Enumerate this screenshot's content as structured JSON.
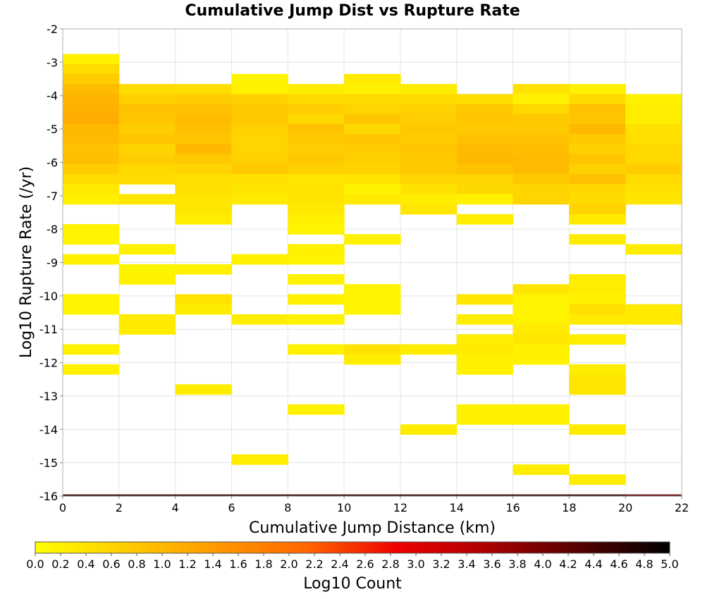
{
  "chart_data": {
    "type": "heatmap",
    "title": "Cumulative Jump Dist vs Rupture Rate",
    "xlabel": "Cumulative Jump Distance (km)",
    "ylabel": "Log10 Rupture Rate (/yr)",
    "xlim": [
      0,
      22
    ],
    "ylim": [
      -16,
      -2
    ],
    "x_ticks": [
      "0",
      "2",
      "4",
      "6",
      "8",
      "10",
      "12",
      "14",
      "16",
      "18",
      "20",
      "22"
    ],
    "y_ticks": [
      "-2",
      "-3",
      "-4",
      "-5",
      "-6",
      "-7",
      "-8",
      "-9",
      "-10",
      "-11",
      "-12",
      "-13",
      "-14",
      "-15",
      "-16"
    ],
    "x_bin_width": 2,
    "y_bin_height": 0.3,
    "grid": true,
    "colorbar": {
      "label": "Log10 Count",
      "range": [
        0,
        5
      ],
      "ticks": [
        "0.0",
        "0.2",
        "0.4",
        "0.6",
        "0.8",
        "1.0",
        "1.2",
        "1.4",
        "1.6",
        "1.8",
        "2.0",
        "2.2",
        "2.4",
        "2.6",
        "2.8",
        "3.0",
        "3.2",
        "3.4",
        "3.6",
        "3.8",
        "4.0",
        "4.2",
        "4.4",
        "4.6",
        "4.8",
        "5.0"
      ],
      "colors": [
        "#ffff00",
        "#ffcc00",
        "#ff9900",
        "#ff6600",
        "#ee0000",
        "#aa0000",
        "#550000",
        "#000000"
      ],
      "position": "bottom"
    },
    "bin_x_centers": [
      1,
      3,
      5,
      7,
      9,
      11,
      13,
      15,
      17,
      19,
      21
    ],
    "columns": [
      {
        "x": 1,
        "cells": [
          {
            "y": -2.9,
            "v": 0.2
          },
          {
            "y": -3.2,
            "v": 0.5
          },
          {
            "y": -3.5,
            "v": 0.7
          },
          {
            "y": -3.8,
            "v": 0.95
          },
          {
            "y": -4.1,
            "v": 1.05
          },
          {
            "y": -4.4,
            "v": 1.1
          },
          {
            "y": -4.7,
            "v": 1.15
          },
          {
            "y": -5.0,
            "v": 1.0
          },
          {
            "y": -5.3,
            "v": 0.95
          },
          {
            "y": -5.6,
            "v": 0.85
          },
          {
            "y": -5.9,
            "v": 0.9
          },
          {
            "y": -6.2,
            "v": 0.7
          },
          {
            "y": -6.5,
            "v": 0.5
          },
          {
            "y": -6.8,
            "v": 0.3
          },
          {
            "y": -7.1,
            "v": 0.2
          },
          {
            "y": -8.0,
            "v": 0.15
          },
          {
            "y": -8.3,
            "v": 0.15
          },
          {
            "y": -8.9,
            "v": 0.2
          },
          {
            "y": -10.1,
            "v": 0.15
          },
          {
            "y": -10.4,
            "v": 0.15
          },
          {
            "y": -11.6,
            "v": 0.2
          },
          {
            "y": -12.2,
            "v": 0.2
          },
          {
            "y": -16.1,
            "v": 4.6
          }
        ]
      },
      {
        "x": 3,
        "cells": [
          {
            "y": -3.8,
            "v": 0.5
          },
          {
            "y": -4.1,
            "v": 0.65
          },
          {
            "y": -4.4,
            "v": 0.85
          },
          {
            "y": -4.7,
            "v": 0.8
          },
          {
            "y": -5.0,
            "v": 0.7
          },
          {
            "y": -5.3,
            "v": 0.8
          },
          {
            "y": -5.6,
            "v": 0.6
          },
          {
            "y": -5.9,
            "v": 0.7
          },
          {
            "y": -6.2,
            "v": 0.55
          },
          {
            "y": -6.5,
            "v": 0.5
          },
          {
            "y": -7.1,
            "v": 0.35
          },
          {
            "y": -8.6,
            "v": 0.2
          },
          {
            "y": -9.2,
            "v": 0.15
          },
          {
            "y": -9.5,
            "v": 0.2
          },
          {
            "y": -10.7,
            "v": 0.3
          },
          {
            "y": -11.0,
            "v": 0.25
          },
          {
            "y": -16.1,
            "v": 4.6
          }
        ]
      },
      {
        "x": 5,
        "cells": [
          {
            "y": -3.8,
            "v": 0.45
          },
          {
            "y": -4.1,
            "v": 0.7
          },
          {
            "y": -4.4,
            "v": 0.85
          },
          {
            "y": -4.7,
            "v": 0.95
          },
          {
            "y": -5.0,
            "v": 0.9
          },
          {
            "y": -5.3,
            "v": 0.8
          },
          {
            "y": -5.6,
            "v": 1.0
          },
          {
            "y": -5.9,
            "v": 0.75
          },
          {
            "y": -6.2,
            "v": 0.6
          },
          {
            "y": -6.5,
            "v": 0.45
          },
          {
            "y": -6.8,
            "v": 0.45
          },
          {
            "y": -7.1,
            "v": 0.35
          },
          {
            "y": -7.4,
            "v": 0.35
          },
          {
            "y": -7.7,
            "v": 0.25
          },
          {
            "y": -9.2,
            "v": 0.2
          },
          {
            "y": -10.1,
            "v": 0.4
          },
          {
            "y": -10.4,
            "v": 0.25
          },
          {
            "y": -12.8,
            "v": 0.25
          },
          {
            "y": -16.1,
            "v": 4.6
          }
        ]
      },
      {
        "x": 7,
        "cells": [
          {
            "y": -3.5,
            "v": 0.15
          },
          {
            "y": -3.8,
            "v": 0.2
          },
          {
            "y": -4.1,
            "v": 0.65
          },
          {
            "y": -4.4,
            "v": 0.75
          },
          {
            "y": -4.7,
            "v": 0.75
          },
          {
            "y": -5.0,
            "v": 0.65
          },
          {
            "y": -5.3,
            "v": 0.6
          },
          {
            "y": -5.6,
            "v": 0.6
          },
          {
            "y": -5.9,
            "v": 0.65
          },
          {
            "y": -6.2,
            "v": 0.75
          },
          {
            "y": -6.5,
            "v": 0.45
          },
          {
            "y": -6.8,
            "v": 0.35
          },
          {
            "y": -7.1,
            "v": 0.3
          },
          {
            "y": -8.9,
            "v": 0.2
          },
          {
            "y": -10.7,
            "v": 0.25
          },
          {
            "y": -14.9,
            "v": 0.25
          },
          {
            "y": -16.1,
            "v": 4.6
          }
        ]
      },
      {
        "x": 9,
        "cells": [
          {
            "y": -3.8,
            "v": 0.25
          },
          {
            "y": -4.1,
            "v": 0.5
          },
          {
            "y": -4.4,
            "v": 0.7
          },
          {
            "y": -4.7,
            "v": 0.55
          },
          {
            "y": -5.0,
            "v": 0.85
          },
          {
            "y": -5.3,
            "v": 0.75
          },
          {
            "y": -5.6,
            "v": 0.7
          },
          {
            "y": -5.9,
            "v": 0.75
          },
          {
            "y": -6.2,
            "v": 0.65
          },
          {
            "y": -6.5,
            "v": 0.35
          },
          {
            "y": -6.8,
            "v": 0.4
          },
          {
            "y": -7.1,
            "v": 0.35
          },
          {
            "y": -7.4,
            "v": 0.3
          },
          {
            "y": -7.7,
            "v": 0.2
          },
          {
            "y": -8.0,
            "v": 0.15
          },
          {
            "y": -8.6,
            "v": 0.2
          },
          {
            "y": -8.9,
            "v": 0.15
          },
          {
            "y": -9.5,
            "v": 0.2
          },
          {
            "y": -10.1,
            "v": 0.2
          },
          {
            "y": -10.7,
            "v": 0.2
          },
          {
            "y": -11.6,
            "v": 0.2
          },
          {
            "y": -13.4,
            "v": 0.2
          },
          {
            "y": -16.1,
            "v": 4.6
          }
        ]
      },
      {
        "x": 11,
        "cells": [
          {
            "y": -3.5,
            "v": 0.3
          },
          {
            "y": -3.8,
            "v": 0.2
          },
          {
            "y": -4.1,
            "v": 0.5
          },
          {
            "y": -4.4,
            "v": 0.6
          },
          {
            "y": -4.7,
            "v": 0.8
          },
          {
            "y": -5.0,
            "v": 0.55
          },
          {
            "y": -5.3,
            "v": 0.8
          },
          {
            "y": -5.6,
            "v": 0.7
          },
          {
            "y": -5.9,
            "v": 0.65
          },
          {
            "y": -6.2,
            "v": 0.6
          },
          {
            "y": -6.5,
            "v": 0.4
          },
          {
            "y": -6.8,
            "v": 0.15
          },
          {
            "y": -7.1,
            "v": 0.3
          },
          {
            "y": -8.3,
            "v": 0.2
          },
          {
            "y": -9.8,
            "v": 0.15
          },
          {
            "y": -10.1,
            "v": 0.15
          },
          {
            "y": -10.4,
            "v": 0.15
          },
          {
            "y": -11.6,
            "v": 0.4
          },
          {
            "y": -11.9,
            "v": 0.25
          },
          {
            "y": -16.1,
            "v": 4.6
          }
        ]
      },
      {
        "x": 13,
        "cells": [
          {
            "y": -3.8,
            "v": 0.25
          },
          {
            "y": -4.1,
            "v": 0.5
          },
          {
            "y": -4.4,
            "v": 0.65
          },
          {
            "y": -4.7,
            "v": 0.7
          },
          {
            "y": -5.0,
            "v": 0.75
          },
          {
            "y": -5.3,
            "v": 0.7
          },
          {
            "y": -5.6,
            "v": 0.8
          },
          {
            "y": -5.9,
            "v": 0.75
          },
          {
            "y": -6.2,
            "v": 0.75
          },
          {
            "y": -6.5,
            "v": 0.6
          },
          {
            "y": -6.8,
            "v": 0.4
          },
          {
            "y": -7.1,
            "v": 0.25
          },
          {
            "y": -7.4,
            "v": 0.35
          },
          {
            "y": -11.6,
            "v": 0.25
          },
          {
            "y": -14.0,
            "v": 0.25
          },
          {
            "y": -16.1,
            "v": 4.6
          }
        ]
      },
      {
        "x": 15,
        "cells": [
          {
            "y": -4.1,
            "v": 0.45
          },
          {
            "y": -4.4,
            "v": 0.75
          },
          {
            "y": -4.7,
            "v": 0.8
          },
          {
            "y": -5.0,
            "v": 0.75
          },
          {
            "y": -5.3,
            "v": 0.85
          },
          {
            "y": -5.6,
            "v": 0.95
          },
          {
            "y": -5.9,
            "v": 1.0
          },
          {
            "y": -6.2,
            "v": 0.85
          },
          {
            "y": -6.5,
            "v": 0.6
          },
          {
            "y": -6.8,
            "v": 0.55
          },
          {
            "y": -7.1,
            "v": 0.2
          },
          {
            "y": -7.7,
            "v": 0.25
          },
          {
            "y": -10.1,
            "v": 0.35
          },
          {
            "y": -10.7,
            "v": 0.25
          },
          {
            "y": -11.3,
            "v": 0.25
          },
          {
            "y": -11.6,
            "v": 0.3
          },
          {
            "y": -11.9,
            "v": 0.2
          },
          {
            "y": -12.2,
            "v": 0.2
          },
          {
            "y": -13.4,
            "v": 0.2
          },
          {
            "y": -13.7,
            "v": 0.2
          },
          {
            "y": -16.1,
            "v": 4.6
          }
        ]
      },
      {
        "x": 17,
        "cells": [
          {
            "y": -3.8,
            "v": 0.4
          },
          {
            "y": -4.1,
            "v": 0.2
          },
          {
            "y": -4.4,
            "v": 0.55
          },
          {
            "y": -4.7,
            "v": 0.75
          },
          {
            "y": -5.0,
            "v": 0.75
          },
          {
            "y": -5.3,
            "v": 0.85
          },
          {
            "y": -5.6,
            "v": 0.9
          },
          {
            "y": -5.9,
            "v": 0.95
          },
          {
            "y": -6.2,
            "v": 0.95
          },
          {
            "y": -6.5,
            "v": 0.75
          },
          {
            "y": -6.8,
            "v": 0.6
          },
          {
            "y": -7.1,
            "v": 0.6
          },
          {
            "y": -9.8,
            "v": 0.35
          },
          {
            "y": -10.1,
            "v": 0.15
          },
          {
            "y": -10.4,
            "v": 0.15
          },
          {
            "y": -10.7,
            "v": 0.15
          },
          {
            "y": -11.0,
            "v": 0.3
          },
          {
            "y": -11.3,
            "v": 0.35
          },
          {
            "y": -11.6,
            "v": 0.2
          },
          {
            "y": -11.9,
            "v": 0.2
          },
          {
            "y": -13.4,
            "v": 0.2
          },
          {
            "y": -13.7,
            "v": 0.2
          },
          {
            "y": -15.2,
            "v": 0.25
          },
          {
            "y": -16.1,
            "v": 4.6
          }
        ]
      },
      {
        "x": 19,
        "cells": [
          {
            "y": -3.8,
            "v": 0.2
          },
          {
            "y": -4.1,
            "v": 0.5
          },
          {
            "y": -4.4,
            "v": 0.85
          },
          {
            "y": -4.7,
            "v": 0.8
          },
          {
            "y": -5.0,
            "v": 1.0
          },
          {
            "y": -5.3,
            "v": 0.75
          },
          {
            "y": -5.6,
            "v": 0.65
          },
          {
            "y": -5.9,
            "v": 0.8
          },
          {
            "y": -6.2,
            "v": 0.65
          },
          {
            "y": -6.5,
            "v": 0.85
          },
          {
            "y": -6.8,
            "v": 0.55
          },
          {
            "y": -7.1,
            "v": 0.5
          },
          {
            "y": -7.4,
            "v": 0.6
          },
          {
            "y": -7.7,
            "v": 0.3
          },
          {
            "y": -8.3,
            "v": 0.25
          },
          {
            "y": -9.5,
            "v": 0.25
          },
          {
            "y": -9.8,
            "v": 0.25
          },
          {
            "y": -10.1,
            "v": 0.2
          },
          {
            "y": -10.4,
            "v": 0.45
          },
          {
            "y": -10.7,
            "v": 0.3
          },
          {
            "y": -11.3,
            "v": 0.25
          },
          {
            "y": -12.2,
            "v": 0.25
          },
          {
            "y": -12.5,
            "v": 0.35
          },
          {
            "y": -12.8,
            "v": 0.35
          },
          {
            "y": -14.0,
            "v": 0.25
          },
          {
            "y": -15.5,
            "v": 0.25
          },
          {
            "y": -16.1,
            "v": 4.6
          }
        ]
      },
      {
        "x": 21,
        "cells": [
          {
            "y": -4.1,
            "v": 0.2
          },
          {
            "y": -4.4,
            "v": 0.25
          },
          {
            "y": -4.7,
            "v": 0.25
          },
          {
            "y": -5.0,
            "v": 0.4
          },
          {
            "y": -5.3,
            "v": 0.45
          },
          {
            "y": -5.6,
            "v": 0.55
          },
          {
            "y": -5.9,
            "v": 0.55
          },
          {
            "y": -6.2,
            "v": 0.7
          },
          {
            "y": -6.5,
            "v": 0.5
          },
          {
            "y": -6.8,
            "v": 0.4
          },
          {
            "y": -7.1,
            "v": 0.35
          },
          {
            "y": -8.6,
            "v": 0.25
          },
          {
            "y": -10.4,
            "v": 0.3
          },
          {
            "y": -10.7,
            "v": 0.3
          },
          {
            "y": -16.1,
            "v": 4.2
          }
        ]
      }
    ]
  }
}
